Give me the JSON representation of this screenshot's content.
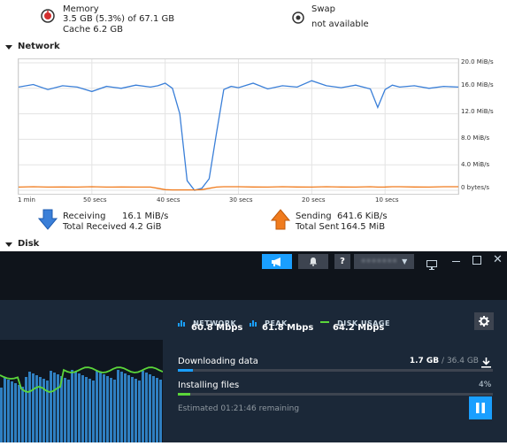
{
  "memory": {
    "title": "Memory",
    "usage": "3.5 GB (5.3%) of 67.1 GB",
    "cache": "Cache 6.2 GB"
  },
  "swap": {
    "title": "Swap",
    "status": "not available"
  },
  "network": {
    "section_title": "Network",
    "y_ticks": [
      "20.0 MiB/s",
      "16.0 MiB/s",
      "12.0 MiB/s",
      "8.0 MiB/s",
      "4.0 MiB/s",
      "0 bytes/s"
    ],
    "x_ticks": [
      "1 min",
      "50 secs",
      "40 secs",
      "30 secs",
      "20 secs",
      "10 secs"
    ],
    "receiving_label": "Receiving",
    "receiving_value": "16.1 MiB/s",
    "total_received_label": "Total Received",
    "total_received_value": "4.2 GiB",
    "sending_label": "Sending",
    "sending_value": "641.6 KiB/s",
    "total_sent_label": "Total Sent",
    "total_sent_value": "164.5 MiB",
    "colors": {
      "receive": "#3a7fd8",
      "send": "#f07b1d"
    }
  },
  "chart_data": {
    "type": "line",
    "x": [
      60,
      58,
      56,
      54,
      52,
      50,
      48,
      46,
      44,
      42,
      41,
      40,
      39,
      38,
      37,
      36,
      35,
      34,
      33,
      32,
      31,
      30,
      28,
      26,
      24,
      22,
      20,
      18,
      16,
      14,
      12,
      11,
      10,
      9,
      8,
      6,
      4,
      2,
      0
    ],
    "x_units": "seconds ago",
    "series": [
      {
        "values": [
          16.2,
          16.6,
          15.8,
          16.4,
          16.2,
          15.5,
          16.3,
          16.0,
          16.5,
          16.2,
          16.4,
          16.8,
          16.0,
          12.0,
          1.5,
          0,
          0.3,
          1.8,
          9,
          15.8,
          16.3,
          16.1,
          16.8,
          15.9,
          16.4,
          16.2,
          17.2,
          16.4,
          16.1,
          16.5,
          15.9,
          13.0,
          15.8,
          16.5,
          16.2,
          16.4,
          16.0,
          16.3,
          16.2
        ]
      },
      {
        "values": [
          0.5,
          0.55,
          0.5,
          0.52,
          0.5,
          0.55,
          0.5,
          0.52,
          0.5,
          0.5,
          0.3,
          0.1,
          0.05,
          0.05,
          0.05,
          0.05,
          0.1,
          0.3,
          0.5,
          0.55,
          0.55,
          0.55,
          0.52,
          0.5,
          0.55,
          0.52,
          0.5,
          0.55,
          0.52,
          0.5,
          0.55,
          0.5,
          0.52,
          0.55,
          0.55,
          0.52,
          0.5,
          0.55,
          0.55
        ]
      }
    ],
    "ylim": [
      0,
      20
    ],
    "xlim": [
      60,
      0
    ],
    "grid": true
  },
  "disk": {
    "section_title": "Disk"
  },
  "steam": {
    "header": {
      "help_label": "?",
      "user_label": "•••••••"
    },
    "stats": {
      "network_label": "NETWORK",
      "network_value": "60.8 Mbps",
      "peak_label": "PEAK",
      "peak_value": "61.8 Mbps",
      "disk_label": "DISK USAGE",
      "disk_value": "64.2 Mbps"
    },
    "downloading_label": "Downloading data",
    "downloaded": "1.7 GB",
    "separator": " / ",
    "total": "36.4 GB",
    "download_fraction": 0.047,
    "installing_label": "Installing files",
    "installing_percent": "4%",
    "install_fraction": 0.04,
    "remaining": "Estimated 01:21:46 remaining",
    "colors": {
      "accent": "#1a9fff",
      "disk_line": "#5bd63a",
      "bars": "#2f7fc1"
    }
  }
}
